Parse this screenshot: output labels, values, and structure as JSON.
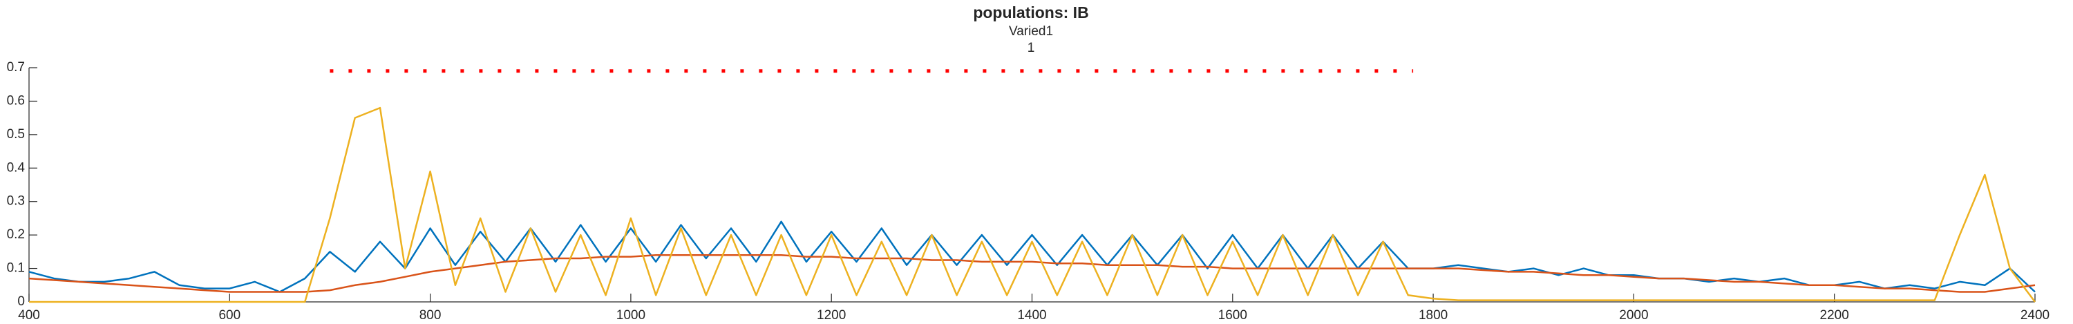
{
  "chart_data": {
    "type": "line",
    "title": "populations: IB",
    "subtitles": [
      "Varied1",
      "1"
    ],
    "x": [
      400,
      425,
      450,
      475,
      500,
      525,
      550,
      575,
      600,
      625,
      650,
      675,
      700,
      725,
      750,
      775,
      800,
      825,
      850,
      875,
      900,
      925,
      950,
      975,
      1000,
      1025,
      1050,
      1075,
      1100,
      1125,
      1150,
      1175,
      1200,
      1225,
      1250,
      1275,
      1300,
      1325,
      1350,
      1375,
      1400,
      1425,
      1450,
      1475,
      1500,
      1525,
      1550,
      1575,
      1600,
      1625,
      1650,
      1675,
      1700,
      1725,
      1750,
      1775,
      1800,
      1825,
      1850,
      1875,
      1900,
      1925,
      1950,
      1975,
      2000,
      2025,
      2050,
      2075,
      2100,
      2125,
      2150,
      2175,
      2200,
      2225,
      2250,
      2275,
      2300,
      2325,
      2350,
      2375,
      2400
    ],
    "series": [
      {
        "color": "#0072bd",
        "values": [
          0.09,
          0.07,
          0.06,
          0.06,
          0.07,
          0.09,
          0.05,
          0.04,
          0.04,
          0.06,
          0.03,
          0.07,
          0.15,
          0.09,
          0.18,
          0.1,
          0.22,
          0.11,
          0.21,
          0.12,
          0.22,
          0.12,
          0.23,
          0.12,
          0.22,
          0.12,
          0.23,
          0.13,
          0.22,
          0.12,
          0.24,
          0.12,
          0.21,
          0.12,
          0.22,
          0.11,
          0.2,
          0.11,
          0.2,
          0.11,
          0.2,
          0.11,
          0.2,
          0.11,
          0.2,
          0.11,
          0.2,
          0.1,
          0.2,
          0.1,
          0.2,
          0.1,
          0.2,
          0.1,
          0.18,
          0.1,
          0.1,
          0.11,
          0.1,
          0.09,
          0.1,
          0.08,
          0.1,
          0.08,
          0.08,
          0.07,
          0.07,
          0.06,
          0.07,
          0.06,
          0.07,
          0.05,
          0.05,
          0.06,
          0.04,
          0.05,
          0.04,
          0.06,
          0.05,
          0.1,
          0.03
        ]
      },
      {
        "color": "#d95319",
        "values": [
          0.07,
          0.065,
          0.06,
          0.055,
          0.05,
          0.045,
          0.04,
          0.035,
          0.03,
          0.03,
          0.03,
          0.03,
          0.035,
          0.05,
          0.06,
          0.075,
          0.09,
          0.1,
          0.11,
          0.12,
          0.125,
          0.13,
          0.13,
          0.135,
          0.135,
          0.14,
          0.14,
          0.14,
          0.14,
          0.14,
          0.14,
          0.135,
          0.135,
          0.13,
          0.13,
          0.13,
          0.125,
          0.125,
          0.12,
          0.12,
          0.12,
          0.115,
          0.115,
          0.11,
          0.11,
          0.11,
          0.105,
          0.105,
          0.1,
          0.1,
          0.1,
          0.1,
          0.1,
          0.1,
          0.1,
          0.1,
          0.1,
          0.1,
          0.095,
          0.09,
          0.09,
          0.085,
          0.08,
          0.08,
          0.075,
          0.07,
          0.07,
          0.065,
          0.06,
          0.06,
          0.055,
          0.05,
          0.05,
          0.045,
          0.04,
          0.04,
          0.035,
          0.03,
          0.03,
          0.04,
          0.05
        ]
      },
      {
        "color": "#edb120",
        "values": [
          0,
          0,
          0,
          0,
          0,
          0,
          0,
          0,
          0,
          0,
          0,
          0,
          0.25,
          0.55,
          0.58,
          0.1,
          0.39,
          0.05,
          0.25,
          0.03,
          0.22,
          0.03,
          0.2,
          0.02,
          0.25,
          0.02,
          0.22,
          0.02,
          0.2,
          0.02,
          0.2,
          0.02,
          0.2,
          0.02,
          0.18,
          0.02,
          0.2,
          0.02,
          0.18,
          0.02,
          0.18,
          0.02,
          0.18,
          0.02,
          0.2,
          0.02,
          0.2,
          0.02,
          0.18,
          0.02,
          0.2,
          0.02,
          0.2,
          0.02,
          0.18,
          0.02,
          0.01,
          0.005,
          0.005,
          0.005,
          0.005,
          0.005,
          0.005,
          0.005,
          0.005,
          0.005,
          0.005,
          0.005,
          0.005,
          0.005,
          0.005,
          0.005,
          0.005,
          0.005,
          0.005,
          0.005,
          0.005,
          0.2,
          0.38,
          0.1,
          0
        ]
      }
    ],
    "marker_series": {
      "color": "#ff0000",
      "style": "dotted",
      "x": [
        700,
        1780
      ],
      "values": [
        0.69,
        0.69
      ]
    },
    "xlim": [
      400,
      2400
    ],
    "ylim": [
      0,
      0.7
    ],
    "xticks": [
      400,
      600,
      800,
      1000,
      1200,
      1400,
      1600,
      1800,
      2000,
      2200,
      2400
    ],
    "yticks": [
      0,
      0.1,
      0.2,
      0.3,
      0.4,
      0.5,
      0.6,
      0.7
    ]
  }
}
